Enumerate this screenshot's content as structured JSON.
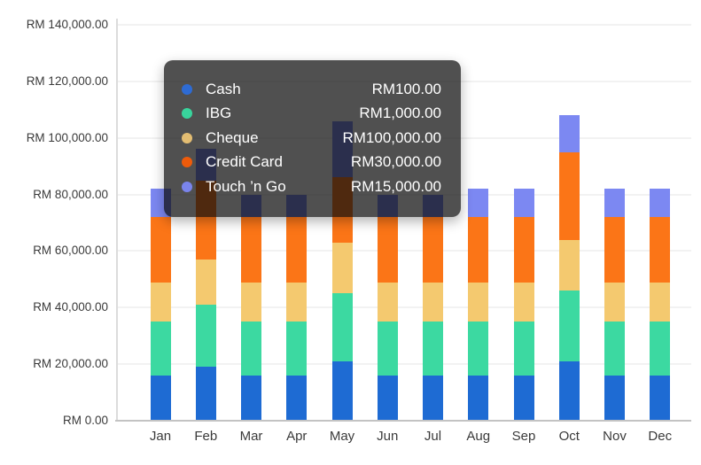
{
  "chart_data": {
    "type": "bar",
    "stacked": true,
    "title": "",
    "xlabel": "",
    "ylabel": "",
    "categories": [
      "Jan",
      "Feb",
      "Mar",
      "Apr",
      "May",
      "Jun",
      "Jul",
      "Aug",
      "Sep",
      "Oct",
      "Nov",
      "Dec"
    ],
    "series": [
      {
        "name": "Cash",
        "color": "#1e6bd3",
        "values": [
          16000,
          19000,
          16000,
          16000,
          21000,
          16000,
          16000,
          16000,
          16000,
          21000,
          16000,
          16000
        ]
      },
      {
        "name": "IBG",
        "color": "#3cd9a1",
        "values": [
          19000,
          22000,
          19000,
          19000,
          24000,
          19000,
          19000,
          19000,
          19000,
          25000,
          19000,
          19000
        ]
      },
      {
        "name": "Cheque",
        "color": "#f4c96f",
        "values": [
          14000,
          16000,
          14000,
          14000,
          18000,
          14000,
          14000,
          14000,
          14000,
          18000,
          14000,
          14000
        ]
      },
      {
        "name": "Credit Card",
        "color": "#fb7517",
        "values": [
          23000,
          28000,
          23000,
          23000,
          23000,
          23000,
          23000,
          23000,
          23000,
          31000,
          23000,
          23000
        ]
      },
      {
        "name": "Touch ’n Go",
        "color": "#7c88f2",
        "values": [
          10000,
          11000,
          8000,
          8000,
          20000,
          8000,
          8000,
          10000,
          10000,
          13000,
          10000,
          10000
        ]
      }
    ],
    "totals": [
      82000,
      96000,
      80000,
      80000,
      106000,
      80000,
      80000,
      82000,
      82000,
      108000,
      82000,
      82000
    ],
    "ylim": [
      0,
      140000
    ],
    "ytick_step": 20000,
    "ytick_labels": [
      "RM 0.00",
      "RM 20,000.00",
      "RM 40,000.00",
      "RM 60,000.00",
      "RM 80,000.00",
      "RM 100,000.00",
      "RM 120,000.00",
      "RM 140,000.00"
    ],
    "grid": true,
    "legend_position": "none"
  },
  "tooltip": {
    "rows": [
      {
        "label": "Cash",
        "value": "RM100.00",
        "dot_color": "#2e6bd3"
      },
      {
        "label": "IBG",
        "value": "RM1,000.00",
        "dot_color": "#38d49c"
      },
      {
        "label": "Cheque",
        "value": "RM100,000.00",
        "dot_color": "#e3bd72"
      },
      {
        "label": "Credit Card",
        "value": "RM30,000.00",
        "dot_color": "#ee5b0b"
      },
      {
        "label": "Touch ’n Go",
        "value": "RM15,000.00",
        "dot_color": "#7a84ec"
      }
    ]
  }
}
